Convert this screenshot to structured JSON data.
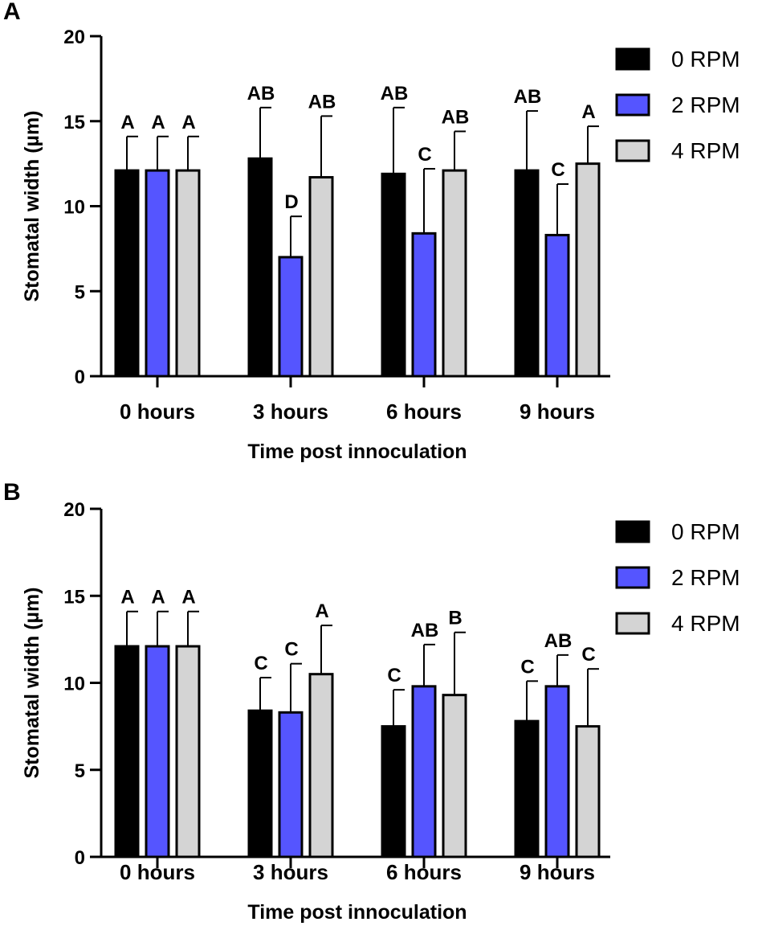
{
  "chart_data": [
    {
      "panel": "A",
      "type": "bar",
      "ylabel": "Stomatal width (µm)",
      "xlabel": "Time post innoculation",
      "ylim": [
        0,
        20
      ],
      "yticks": [
        0,
        5,
        10,
        15,
        20
      ],
      "categories": [
        "0 hours",
        "3 hours",
        "6 hours",
        "9 hours"
      ],
      "legend_position": "top-right",
      "series": [
        {
          "name": "0 RPM",
          "color": "#000000",
          "values": [
            12.1,
            12.8,
            11.9,
            12.1
          ],
          "errors": [
            2.0,
            3.0,
            3.9,
            3.5
          ],
          "letters": [
            "A",
            "AB",
            "AB",
            "AB"
          ]
        },
        {
          "name": "2 RPM",
          "color": "#5555ff",
          "values": [
            12.1,
            7.0,
            8.4,
            8.3
          ],
          "errors": [
            2.0,
            2.4,
            3.8,
            3.0
          ],
          "letters": [
            "A",
            "D",
            "C",
            "C"
          ]
        },
        {
          "name": "4 RPM",
          "color": "#d4d4d4",
          "values": [
            12.1,
            11.7,
            12.1,
            12.5
          ],
          "errors": [
            2.0,
            3.6,
            2.3,
            2.2
          ],
          "letters": [
            "A",
            "AB",
            "AB",
            "A"
          ]
        }
      ]
    },
    {
      "panel": "B",
      "type": "bar",
      "ylabel": "Stomatal width (µm)",
      "xlabel": "Time post innoculation",
      "ylim": [
        0,
        20
      ],
      "yticks": [
        0,
        5,
        10,
        15,
        20
      ],
      "categories": [
        "0 hours",
        "3 hours",
        "6 hours",
        "9 hours"
      ],
      "legend_position": "top-right",
      "series": [
        {
          "name": "0 RPM",
          "color": "#000000",
          "values": [
            12.1,
            8.4,
            7.5,
            7.8
          ],
          "errors": [
            2.0,
            1.9,
            2.1,
            2.3
          ],
          "letters": [
            "A",
            "C",
            "C",
            "C"
          ]
        },
        {
          "name": "2 RPM",
          "color": "#5555ff",
          "values": [
            12.1,
            8.3,
            9.8,
            9.8
          ],
          "errors": [
            2.0,
            2.8,
            2.4,
            1.8
          ],
          "letters": [
            "A",
            "C",
            "AB",
            "AB"
          ]
        },
        {
          "name": "4 RPM",
          "color": "#d4d4d4",
          "values": [
            12.1,
            10.5,
            9.3,
            7.5
          ],
          "errors": [
            2.0,
            2.8,
            3.6,
            3.3
          ],
          "letters": [
            "A",
            "A",
            "B",
            "C"
          ]
        }
      ]
    }
  ]
}
